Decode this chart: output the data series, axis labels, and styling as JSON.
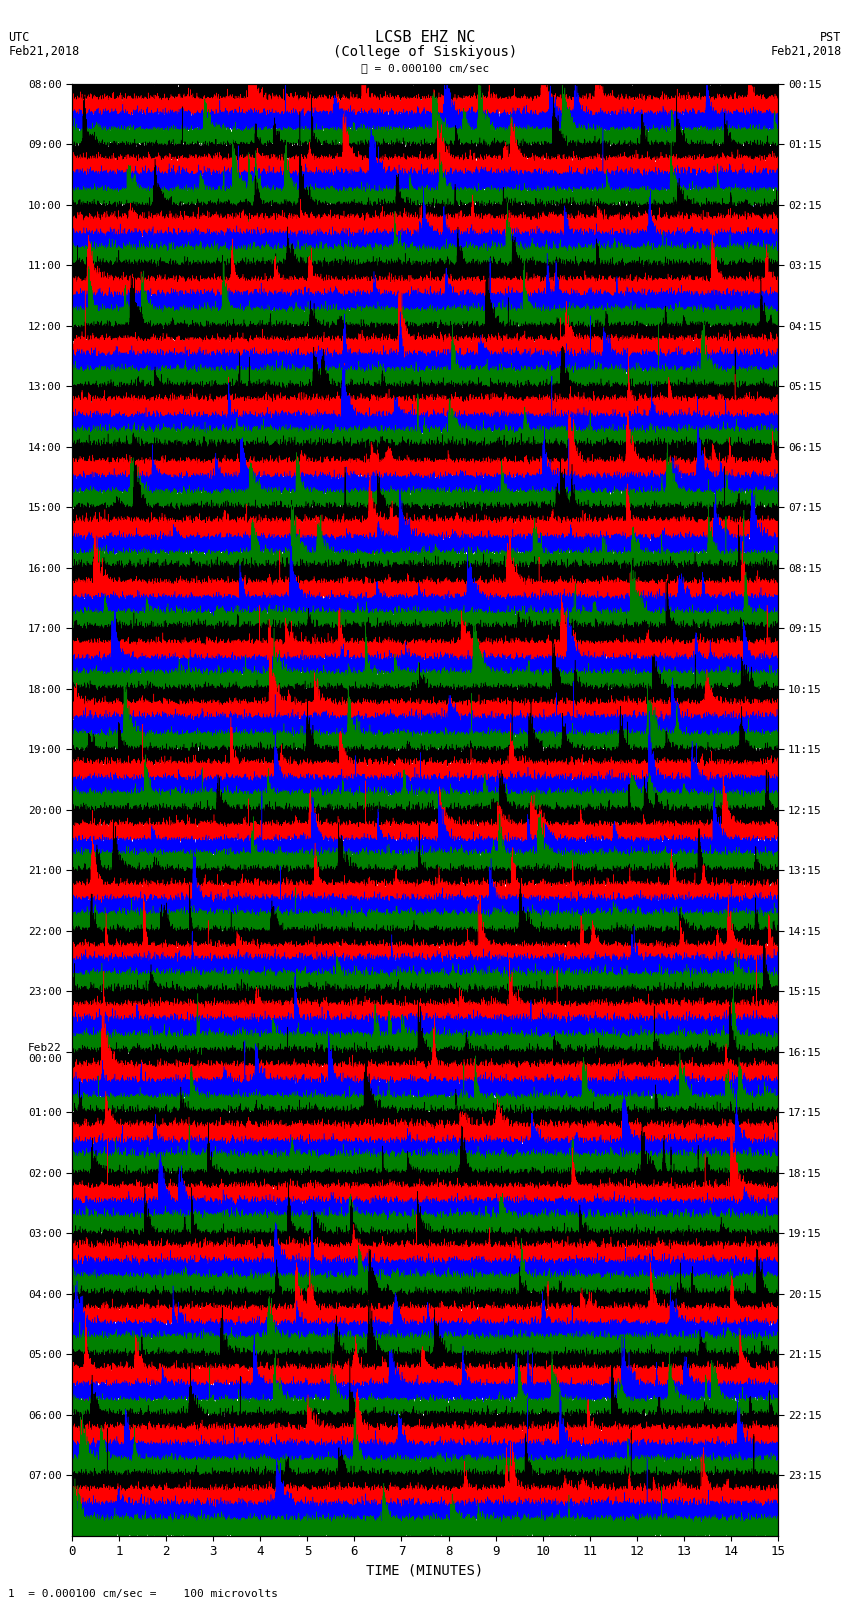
{
  "title_line1": "LCSB EHZ NC",
  "title_line2": "(College of Siskiyous)",
  "scale_label": "= 0.000100 cm/sec",
  "bottom_label": "1  = 0.000100 cm/sec =    100 microvolts",
  "xlabel": "TIME (MINUTES)",
  "utc_label1": "UTC",
  "utc_label2": "Feb21,2018",
  "pst_label1": "PST",
  "pst_label2": "Feb21,2018",
  "left_times": [
    "08:00",
    "09:00",
    "10:00",
    "11:00",
    "12:00",
    "13:00",
    "14:00",
    "15:00",
    "16:00",
    "17:00",
    "18:00",
    "19:00",
    "20:00",
    "21:00",
    "22:00",
    "23:00",
    "Feb22\n00:00",
    "01:00",
    "02:00",
    "03:00",
    "04:00",
    "05:00",
    "06:00",
    "07:00"
  ],
  "right_times": [
    "00:15",
    "01:15",
    "02:15",
    "03:15",
    "04:15",
    "05:15",
    "06:15",
    "07:15",
    "08:15",
    "09:15",
    "10:15",
    "11:15",
    "12:15",
    "13:15",
    "14:15",
    "15:15",
    "16:15",
    "17:15",
    "18:15",
    "19:15",
    "20:15",
    "21:15",
    "22:15",
    "23:15"
  ],
  "colors": [
    "black",
    "red",
    "blue",
    "green"
  ],
  "n_hours": 24,
  "traces_per_hour": 4,
  "n_minutes": 15,
  "sample_rate": 50,
  "bg_color": "#ffffff",
  "figsize": [
    8.5,
    16.13
  ],
  "dpi": 100
}
